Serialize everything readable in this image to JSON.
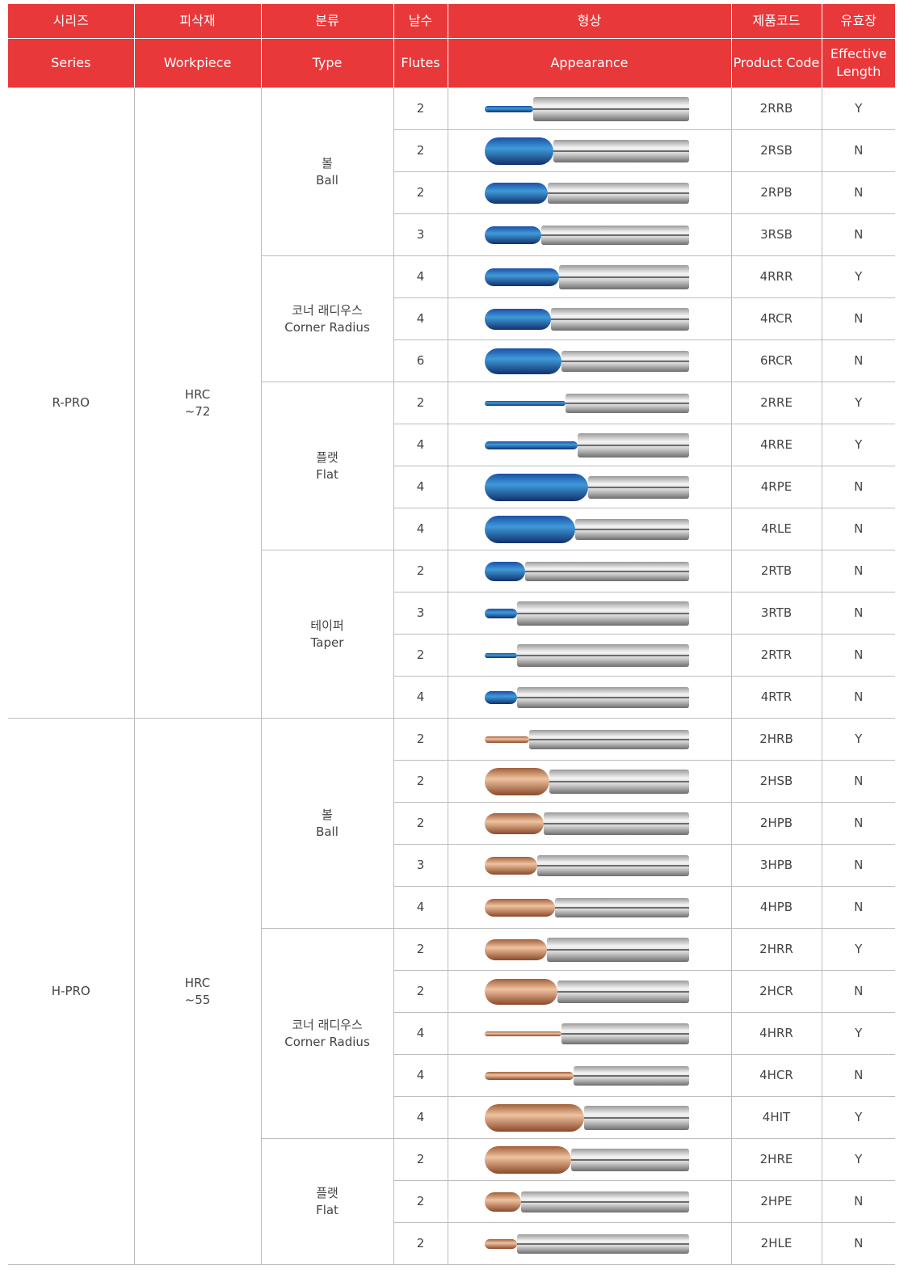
{
  "header": {
    "korean": [
      "시리즈",
      "피삭재",
      "분류",
      "날수",
      "형상",
      "제품코드",
      "유효장"
    ],
    "english": [
      "Series",
      "Workpiece",
      "Type",
      "Flutes",
      "Appearance",
      "Product Code",
      "Effective Length"
    ]
  },
  "groups": [
    {
      "series": "R-PRO",
      "workpiece": [
        "HRC",
        "~72"
      ],
      "types": [
        {
          "korean": "볼",
          "english": "Ball",
          "rows": [
            {
              "flutes": 2,
              "code": "2RRB",
              "effective": "Y"
            },
            {
              "flutes": 2,
              "code": "2RSB",
              "effective": "N"
            },
            {
              "flutes": 2,
              "code": "2RPB",
              "effective": "N"
            },
            {
              "flutes": 3,
              "code": "3RSB",
              "effective": "N"
            }
          ]
        },
        {
          "korean": "코너 래디우스",
          "english": "Corner Radius",
          "rows": [
            {
              "flutes": 4,
              "code": "4RRR",
              "effective": "Y"
            },
            {
              "flutes": 4,
              "code": "4RCR",
              "effective": "N"
            },
            {
              "flutes": 6,
              "code": "6RCR",
              "effective": "N"
            }
          ]
        },
        {
          "korean": "플랫",
          "english": "Flat",
          "rows": [
            {
              "flutes": 2,
              "code": "2RRE",
              "effective": "Y"
            },
            {
              "flutes": 4,
              "code": "4RRE",
              "effective": "Y"
            },
            {
              "flutes": 4,
              "code": "4RPE",
              "effective": "N"
            },
            {
              "flutes": 4,
              "code": "4RLE",
              "effective": "N"
            }
          ]
        },
        {
          "korean": "테이퍼",
          "english": "Taper",
          "rows": [
            {
              "flutes": 2,
              "code": "2RTB",
              "effective": "N"
            },
            {
              "flutes": 3,
              "code": "3RTB",
              "effective": "N"
            },
            {
              "flutes": 2,
              "code": "2RTR",
              "effective": "N"
            },
            {
              "flutes": 4,
              "code": "4RTR",
              "effective": "N"
            }
          ]
        }
      ]
    },
    {
      "series": "H-PRO",
      "workpiece": [
        "HRC",
        "~55"
      ],
      "types": [
        {
          "korean": "볼",
          "english": "Ball",
          "rows": [
            {
              "flutes": 2,
              "code": "2HRB",
              "effective": "Y"
            },
            {
              "flutes": 2,
              "code": "2HSB",
              "effective": "N"
            },
            {
              "flutes": 2,
              "code": "2HPB",
              "effective": "N"
            },
            {
              "flutes": 3,
              "code": "3HPB",
              "effective": "N"
            },
            {
              "flutes": 4,
              "code": "4HPB",
              "effective": "N"
            }
          ]
        },
        {
          "korean": "코너 래디우스",
          "english": "Corner Radius",
          "rows": [
            {
              "flutes": 2,
              "code": "2HRR",
              "effective": "Y"
            },
            {
              "flutes": 2,
              "code": "2HCR",
              "effective": "N"
            },
            {
              "flutes": 4,
              "code": "4HRR",
              "effective": "Y"
            },
            {
              "flutes": 4,
              "code": "4HCR",
              "effective": "N"
            },
            {
              "flutes": 4,
              "code": "4HIT",
              "effective": "Y"
            }
          ]
        },
        {
          "korean": "플랫",
          "english": "Flat",
          "rows": [
            {
              "flutes": 2,
              "code": "2HRE",
              "effective": "Y"
            },
            {
              "flutes": 2,
              "code": "2HPE",
              "effective": "N"
            },
            {
              "flutes": 2,
              "code": "2HLE",
              "effective": "N"
            }
          ]
        }
      ]
    }
  ]
}
